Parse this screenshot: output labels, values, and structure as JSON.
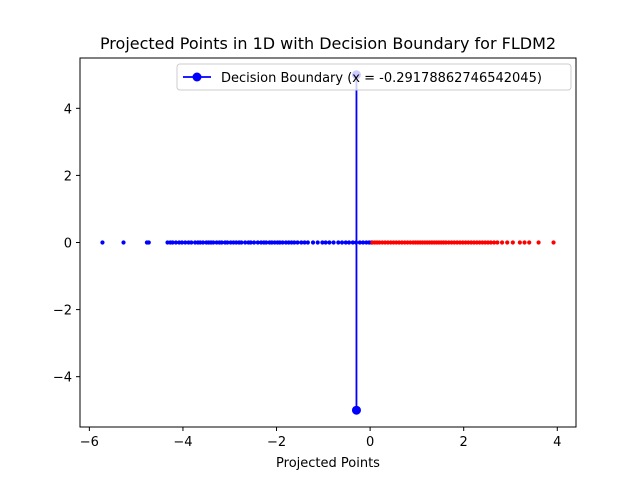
{
  "chart_data": {
    "type": "scatter",
    "title": "Projected Points in 1D with Decision Boundary for FLDM2",
    "xlabel": "Projected Points",
    "ylabel": "",
    "xlim": [
      -6.2,
      4.4
    ],
    "ylim": [
      -5.5,
      5.5
    ],
    "x_ticks": [
      -6,
      -4,
      -2,
      0,
      2,
      4
    ],
    "x_tick_labels": [
      "−6",
      "−4",
      "−2",
      "0",
      "2",
      "4"
    ],
    "y_ticks": [
      -4,
      -2,
      0,
      2,
      4
    ],
    "y_tick_labels": [
      "−4",
      "−2",
      "0",
      "2",
      "4"
    ],
    "grid": false,
    "legend_position": "upper right",
    "series": [
      {
        "color": "#0000ff",
        "x": [
          -5.72,
          -5.27,
          -4.77,
          -4.73,
          -4.33,
          -4.27,
          -4.22,
          -4.15,
          -4.08,
          -4.02,
          -3.95,
          -3.88,
          -3.82,
          -3.74,
          -3.68,
          -3.63,
          -3.57,
          -3.5,
          -3.45,
          -3.4,
          -3.35,
          -3.28,
          -3.22,
          -3.17,
          -3.1,
          -3.05,
          -2.98,
          -2.92,
          -2.86,
          -2.8,
          -2.75,
          -2.67,
          -2.6,
          -2.55,
          -2.48,
          -2.4,
          -2.33,
          -2.27,
          -2.22,
          -2.15,
          -2.1,
          -2.04,
          -1.98,
          -1.93,
          -1.87,
          -1.8,
          -1.74,
          -1.68,
          -1.62,
          -1.55,
          -1.47,
          -1.4,
          -1.33,
          -1.22,
          -1.12,
          -1.02,
          -0.95,
          -0.87,
          -0.78,
          -0.68,
          -0.6,
          -0.52,
          -0.45,
          -0.37,
          -0.3,
          -0.22,
          -0.15,
          -0.08,
          -0.02,
          0.03
        ]
      },
      {
        "color": "#ff0000",
        "x": [
          0.05,
          0.1,
          0.15,
          0.2,
          0.26,
          0.32,
          0.38,
          0.44,
          0.5,
          0.56,
          0.62,
          0.68,
          0.74,
          0.8,
          0.86,
          0.92,
          0.97,
          1.02,
          1.07,
          1.12,
          1.17,
          1.22,
          1.27,
          1.32,
          1.37,
          1.42,
          1.47,
          1.52,
          1.57,
          1.62,
          1.68,
          1.74,
          1.8,
          1.86,
          1.92,
          1.98,
          2.04,
          2.1,
          2.16,
          2.22,
          2.28,
          2.34,
          2.4,
          2.46,
          2.52,
          2.58,
          2.65,
          2.72,
          2.82,
          2.93,
          3.05,
          3.2,
          3.3,
          3.4,
          3.6,
          3.92
        ]
      },
      {
        "name": "Decision Boundary (x = -0.29178862746542045)",
        "color": "#0000ff",
        "type": "line",
        "x": [
          -0.29178862746542045,
          -0.29178862746542045
        ],
        "y": [
          -5,
          5
        ]
      }
    ]
  }
}
